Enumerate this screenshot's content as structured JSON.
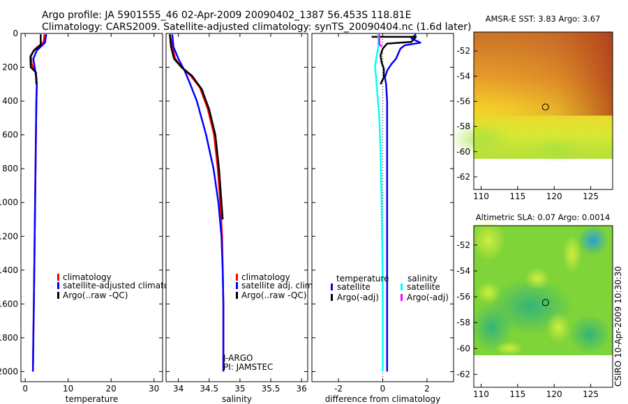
{
  "title_line1": "Argo profile: JA 5901555_46 02-Apr-2009 20090402_1387 56.453S 118.81E",
  "title_line2": "Climatology: CARS2009. Satellite-adjusted climatology: synTS_20090404.nc (1.6d later)",
  "side_label": "CSIRO 10-Apr-2009 10:30:30",
  "colors": {
    "climatology": "#ff0000",
    "satellite": "#0000ff",
    "argo": "#000000",
    "cyan": "#00ffff",
    "magenta": "#ff00ff"
  },
  "chart_data": [
    {
      "type": "line",
      "id": "temperature",
      "xlabel": "temperature",
      "xlim": [
        -1,
        32
      ],
      "ylim": [
        0,
        2060
      ],
      "xticks": [
        0,
        10,
        20,
        30
      ],
      "yticks": [
        0,
        200,
        400,
        600,
        800,
        1000,
        1200,
        1400,
        1600,
        1800,
        2000
      ],
      "legend": [
        "climatology",
        "satellite-adjusted climatolog",
        "Argo(..raw -QC)"
      ],
      "series": [
        {
          "name": "climatology",
          "color": "#ff0000",
          "points": [
            [
              4.5,
              5
            ],
            [
              4.3,
              50
            ],
            [
              2.4,
              90
            ],
            [
              1.3,
              130
            ],
            [
              1.5,
              180
            ],
            [
              2.4,
              230
            ],
            [
              2.7,
              300
            ],
            [
              2.6,
              400
            ],
            [
              2.5,
              600
            ],
            [
              2.4,
              800
            ],
            [
              2.3,
              1000
            ],
            [
              2.2,
              1200
            ],
            [
              2.1,
              1400
            ],
            [
              2.0,
              1600
            ],
            [
              1.9,
              1800
            ],
            [
              1.8,
              2000
            ]
          ]
        },
        {
          "name": "satellite-adjusted climatolog",
          "color": "#0000ff",
          "points": [
            [
              4.9,
              5
            ],
            [
              4.6,
              55
            ],
            [
              2.7,
              100
            ],
            [
              1.9,
              150
            ],
            [
              2.2,
              200
            ],
            [
              2.6,
              260
            ],
            [
              2.7,
              300
            ],
            [
              2.6,
              400
            ],
            [
              2.5,
              600
            ],
            [
              2.4,
              800
            ],
            [
              2.3,
              1000
            ],
            [
              2.2,
              1200
            ],
            [
              2.1,
              1400
            ],
            [
              2.0,
              1600
            ],
            [
              1.9,
              1800
            ],
            [
              1.8,
              2000
            ]
          ]
        },
        {
          "name": "Argo(..raw -QC)",
          "color": "#000000",
          "points": [
            [
              3.6,
              5
            ],
            [
              3.6,
              70
            ],
            [
              2.0,
              100
            ],
            [
              1.2,
              140
            ],
            [
              1.3,
              200
            ],
            [
              2.5,
              230
            ],
            [
              2.6,
              300
            ]
          ]
        }
      ]
    },
    {
      "type": "line",
      "id": "salinity",
      "xlabel": "salinity",
      "xlim": [
        33.8,
        36.1
      ],
      "ylim": [
        0,
        2060
      ],
      "xticks": [
        34,
        34.5,
        35,
        35.5,
        36
      ],
      "yticks": [
        0,
        200,
        400,
        600,
        800,
        1000,
        1200,
        1400,
        1600,
        1800,
        2000
      ],
      "legend": [
        "climatology",
        "satellite adj. clim.",
        "Argo(..raw -QC)"
      ],
      "annotations": [
        "J-ARGO",
        "PI: JAMSTEC"
      ],
      "series": [
        {
          "name": "climatology",
          "color": "#ff0000",
          "points": [
            [
              33.86,
              5
            ],
            [
              33.9,
              80
            ],
            [
              33.95,
              150
            ],
            [
              34.05,
              200
            ],
            [
              34.2,
              250
            ],
            [
              34.35,
              320
            ],
            [
              34.48,
              450
            ],
            [
              34.58,
              600
            ],
            [
              34.64,
              800
            ],
            [
              34.68,
              1000
            ],
            [
              34.71,
              1200
            ],
            [
              34.72,
              1400
            ],
            [
              34.73,
              1600
            ],
            [
              34.73,
              1800
            ],
            [
              34.73,
              2000
            ]
          ]
        },
        {
          "name": "satellite adj. clim.",
          "color": "#0000ff",
          "points": [
            [
              33.9,
              5
            ],
            [
              33.92,
              80
            ],
            [
              34.0,
              150
            ],
            [
              34.1,
              220
            ],
            [
              34.17,
              280
            ],
            [
              34.3,
              400
            ],
            [
              34.45,
              600
            ],
            [
              34.57,
              800
            ],
            [
              34.65,
              1000
            ],
            [
              34.7,
              1200
            ],
            [
              34.72,
              1400
            ],
            [
              34.73,
              1600
            ],
            [
              34.73,
              1800
            ],
            [
              34.73,
              2000
            ]
          ]
        },
        {
          "name": "Argo(..raw -QC)",
          "color": "#000000",
          "points": [
            [
              33.86,
              5
            ],
            [
              33.88,
              80
            ],
            [
              33.93,
              150
            ],
            [
              34.05,
              200
            ],
            [
              34.22,
              250
            ],
            [
              34.38,
              330
            ],
            [
              34.5,
              450
            ],
            [
              34.6,
              600
            ],
            [
              34.66,
              800
            ],
            [
              34.7,
              1000
            ],
            [
              34.72,
              1100
            ]
          ]
        }
      ]
    },
    {
      "type": "line",
      "id": "difference",
      "xlabel": "difference from climatology",
      "xlim": [
        -3.2,
        3.2
      ],
      "ylim": [
        0,
        2060
      ],
      "xticks": [
        -2,
        0,
        2
      ],
      "yticks": [
        0,
        200,
        400,
        600,
        800,
        1000,
        1200,
        1400,
        1600,
        1800,
        2000
      ],
      "legend_headers": [
        "temperature",
        "salinity"
      ],
      "legend": [
        "satellite",
        "Argo(-adj)",
        "satellite",
        "Argo(-adj)"
      ],
      "series": [
        {
          "name": "temperature satellite",
          "color": "#0000ff",
          "points": [
            [
              1.5,
              5
            ],
            [
              1.3,
              30
            ],
            [
              1.7,
              55
            ],
            [
              1.0,
              70
            ],
            [
              0.8,
              90
            ],
            [
              0.6,
              150
            ],
            [
              0.4,
              180
            ],
            [
              0.2,
              220
            ],
            [
              0.1,
              260
            ],
            [
              0.15,
              300
            ],
            [
              0.2,
              400
            ],
            [
              0.2,
              600
            ],
            [
              0.2,
              1000
            ],
            [
              0.2,
              1500
            ],
            [
              0.2,
              2000
            ]
          ]
        },
        {
          "name": "temperature Argo(-adj)",
          "color": "#000000",
          "points": [
            [
              -0.5,
              20
            ],
            [
              1.5,
              20
            ],
            [
              1.3,
              50
            ],
            [
              0.2,
              60
            ],
            [
              0.0,
              90
            ],
            [
              -0.1,
              130
            ],
            [
              -0.05,
              170
            ],
            [
              0.05,
              210
            ],
            [
              0.05,
              260
            ],
            [
              -0.1,
              300
            ]
          ]
        },
        {
          "name": "salinity satellite",
          "color": "#00ffff",
          "points": [
            [
              -0.2,
              5
            ],
            [
              -0.2,
              80
            ],
            [
              -0.3,
              150
            ],
            [
              -0.35,
              200
            ],
            [
              -0.3,
              260
            ],
            [
              -0.25,
              350
            ],
            [
              -0.15,
              500
            ],
            [
              -0.1,
              700
            ],
            [
              -0.05,
              1000
            ],
            [
              0.0,
              1500
            ],
            [
              0.0,
              2000
            ]
          ]
        },
        {
          "name": "salinity Argo(-adj)",
          "color": "#ff00ff",
          "points": [
            [
              -0.15,
              5
            ],
            [
              -0.15,
              60
            ],
            [
              -0.05,
              80
            ]
          ]
        }
      ]
    },
    {
      "type": "heatmap",
      "id": "sst",
      "title": "AMSR-E SST: 3.83 Argo: 3.67",
      "xlim": [
        109,
        128
      ],
      "ylim": [
        -63,
        -50.5
      ],
      "xticks": [
        110,
        115,
        120,
        125
      ],
      "yticks": [
        -52,
        -54,
        -56,
        -58,
        -60,
        -62
      ],
      "marker": [
        118.81,
        -56.45
      ]
    },
    {
      "type": "heatmap",
      "id": "sla",
      "title": "Altimetric SLA: 0.07 Argo: 0.0014",
      "xlim": [
        109,
        128
      ],
      "ylim": [
        -63,
        -50.5
      ],
      "xticks": [
        110,
        115,
        120,
        125
      ],
      "yticks": [
        -52,
        -54,
        -56,
        -58,
        -60,
        -62
      ],
      "marker": [
        118.81,
        -56.45
      ]
    }
  ]
}
